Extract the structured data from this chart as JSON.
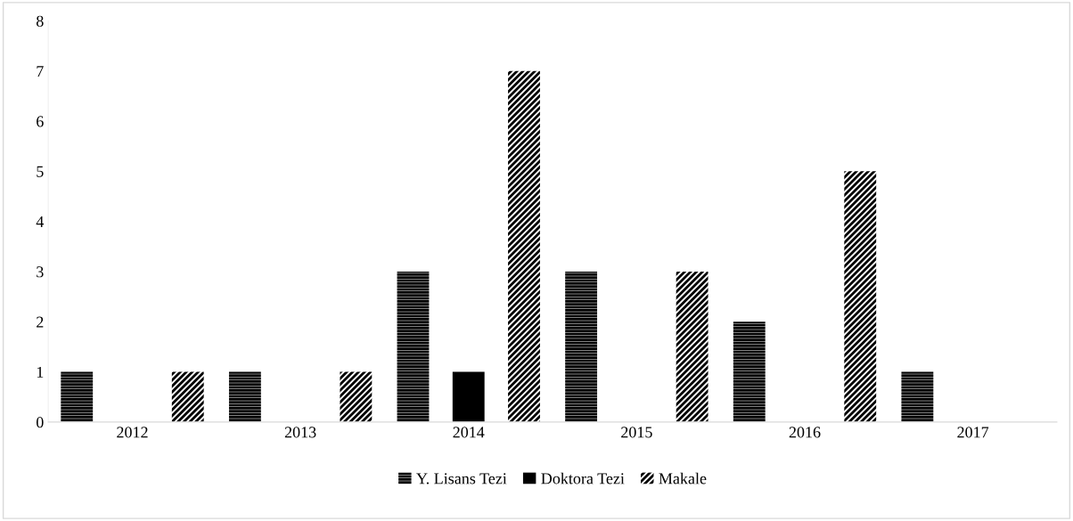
{
  "chart_data": {
    "type": "bar",
    "categories": [
      "2012",
      "2013",
      "2014",
      "2015",
      "2016",
      "2017"
    ],
    "series": [
      {
        "name": "Y. Lisans Tezi",
        "color": "#000000",
        "values": [
          1,
          1,
          3,
          3,
          2,
          1
        ]
      },
      {
        "name": "Doktora Tezi",
        "color": "#000000",
        "values": [
          0,
          0,
          1,
          0,
          0,
          0
        ]
      },
      {
        "name": "Makale",
        "color": "#000000",
        "values": [
          1,
          1,
          7,
          3,
          5,
          0
        ]
      }
    ],
    "ylim": [
      0,
      8
    ],
    "yticks": [
      0,
      1,
      2,
      3,
      4,
      5,
      6,
      7,
      8
    ],
    "grid": false,
    "legend": "bottom"
  }
}
